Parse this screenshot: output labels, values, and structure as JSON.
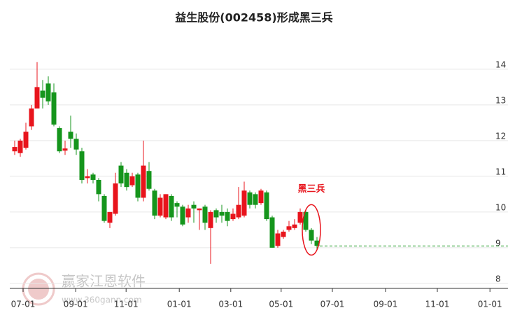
{
  "chart_data": {
    "type": "candlestick",
    "title": "益生股份(002458)形成黑三兵",
    "annotation": "黑三兵",
    "annotation_color": "#e8141c",
    "watermark": "赢家江恩软件",
    "watermark_url": "www.360gann.com",
    "up_color": "#e8141c",
    "down_color": "#15951c",
    "grid": true,
    "categories": [
      null,
      null,
      null,
      null,
      null,
      null,
      null,
      null,
      null,
      null,
      null,
      null,
      null,
      null,
      null,
      null,
      null,
      null,
      null,
      null,
      null,
      null,
      null,
      null,
      null,
      null,
      null,
      null,
      null,
      null,
      null,
      null,
      null,
      null,
      null,
      null,
      null,
      null,
      null,
      null,
      null,
      null,
      null,
      null,
      null,
      null,
      null,
      null,
      null,
      null,
      null,
      null,
      null,
      null,
      null
    ],
    "open": [
      11.7,
      11.65,
      11.8,
      12.4,
      12.9,
      13.4,
      13.6,
      13.35,
      12.35,
      11.72,
      12.25,
      12.05,
      11.7,
      10.95,
      11.05,
      10.9,
      10.45,
      9.7,
      9.95,
      11.3,
      11.1,
      10.75,
      11.05,
      10.4,
      11.15,
      10.6,
      9.9,
      9.85,
      10.45,
      10.25,
      10.15,
      9.85,
      10.2,
      10.05,
      10.15,
      9.55,
      10.05,
      10.0,
      10.0,
      9.8,
      9.85,
      9.9,
      10.55,
      10.5,
      10.25,
      10.55,
      9.85,
      9.05,
      9.3,
      9.5,
      9.55,
      9.7,
      10.0,
      9.5,
      9.2
    ],
    "high": [
      12.0,
      12.05,
      12.5,
      13.0,
      14.2,
      13.7,
      13.8,
      13.6,
      12.4,
      12.0,
      12.7,
      12.2,
      11.8,
      11.2,
      11.1,
      10.95,
      10.5,
      10.0,
      11.1,
      11.4,
      11.2,
      11.1,
      11.1,
      12.0,
      11.4,
      10.65,
      10.5,
      10.5,
      10.5,
      10.3,
      10.2,
      10.2,
      10.3,
      10.1,
      10.2,
      10.05,
      10.1,
      10.2,
      10.1,
      10.1,
      10.7,
      10.85,
      10.6,
      10.55,
      10.65,
      10.6,
      9.9,
      9.5,
      9.5,
      9.75,
      9.8,
      10.1,
      10.05,
      9.55,
      9.3
    ],
    "low": [
      11.6,
      11.55,
      11.75,
      12.3,
      12.9,
      12.9,
      13.0,
      12.4,
      11.65,
      11.6,
      11.8,
      11.6,
      10.8,
      10.8,
      10.8,
      10.3,
      9.7,
      9.55,
      9.9,
      10.7,
      10.6,
      10.7,
      10.3,
      10.3,
      10.6,
      9.8,
      9.85,
      9.8,
      9.75,
      9.85,
      9.6,
      9.7,
      9.7,
      9.5,
      9.5,
      8.55,
      9.7,
      9.7,
      9.6,
      9.75,
      9.8,
      9.85,
      10.1,
      10.1,
      10.2,
      9.75,
      9.0,
      9.0,
      9.25,
      9.45,
      9.5,
      9.65,
      9.45,
      9.1,
      8.95
    ],
    "close": [
      11.82,
      12.0,
      12.25,
      12.9,
      13.5,
      13.2,
      13.1,
      12.45,
      11.7,
      11.78,
      12.05,
      11.75,
      10.9,
      11.0,
      10.9,
      10.5,
      9.75,
      10.0,
      10.8,
      10.8,
      10.7,
      11.0,
      10.4,
      11.3,
      10.65,
      9.9,
      10.4,
      10.5,
      9.85,
      10.15,
      9.65,
      10.1,
      10.1,
      10.1,
      9.7,
      10.0,
      9.85,
      9.9,
      9.75,
      9.95,
      10.2,
      10.6,
      10.2,
      10.2,
      10.6,
      9.8,
      9.0,
      9.4,
      9.45,
      9.6,
      9.65,
      10.0,
      9.5,
      9.2,
      9.05
    ],
    "xlim": [
      -0.875,
      88.125
    ],
    "xticks": [
      {
        "value": 1.5,
        "label": "07-01"
      },
      {
        "value": 10.9,
        "label": "09-01"
      },
      {
        "value": 19.9,
        "label": "11-01"
      },
      {
        "value": 29.4,
        "label": "01-01"
      },
      {
        "value": 38.6,
        "label": "03-01"
      },
      {
        "value": 47.6,
        "label": "05-01"
      },
      {
        "value": 56.75,
        "label": "07-01"
      },
      {
        "value": 66.25,
        "label": "09-01"
      },
      {
        "value": 75.5,
        "label": "11-01"
      },
      {
        "value": 84.9,
        "label": "01-01"
      }
    ],
    "ylim": [
      7.86,
      14.9
    ],
    "yticks": [
      8,
      9,
      10,
      11,
      12,
      13,
      14
    ]
  }
}
